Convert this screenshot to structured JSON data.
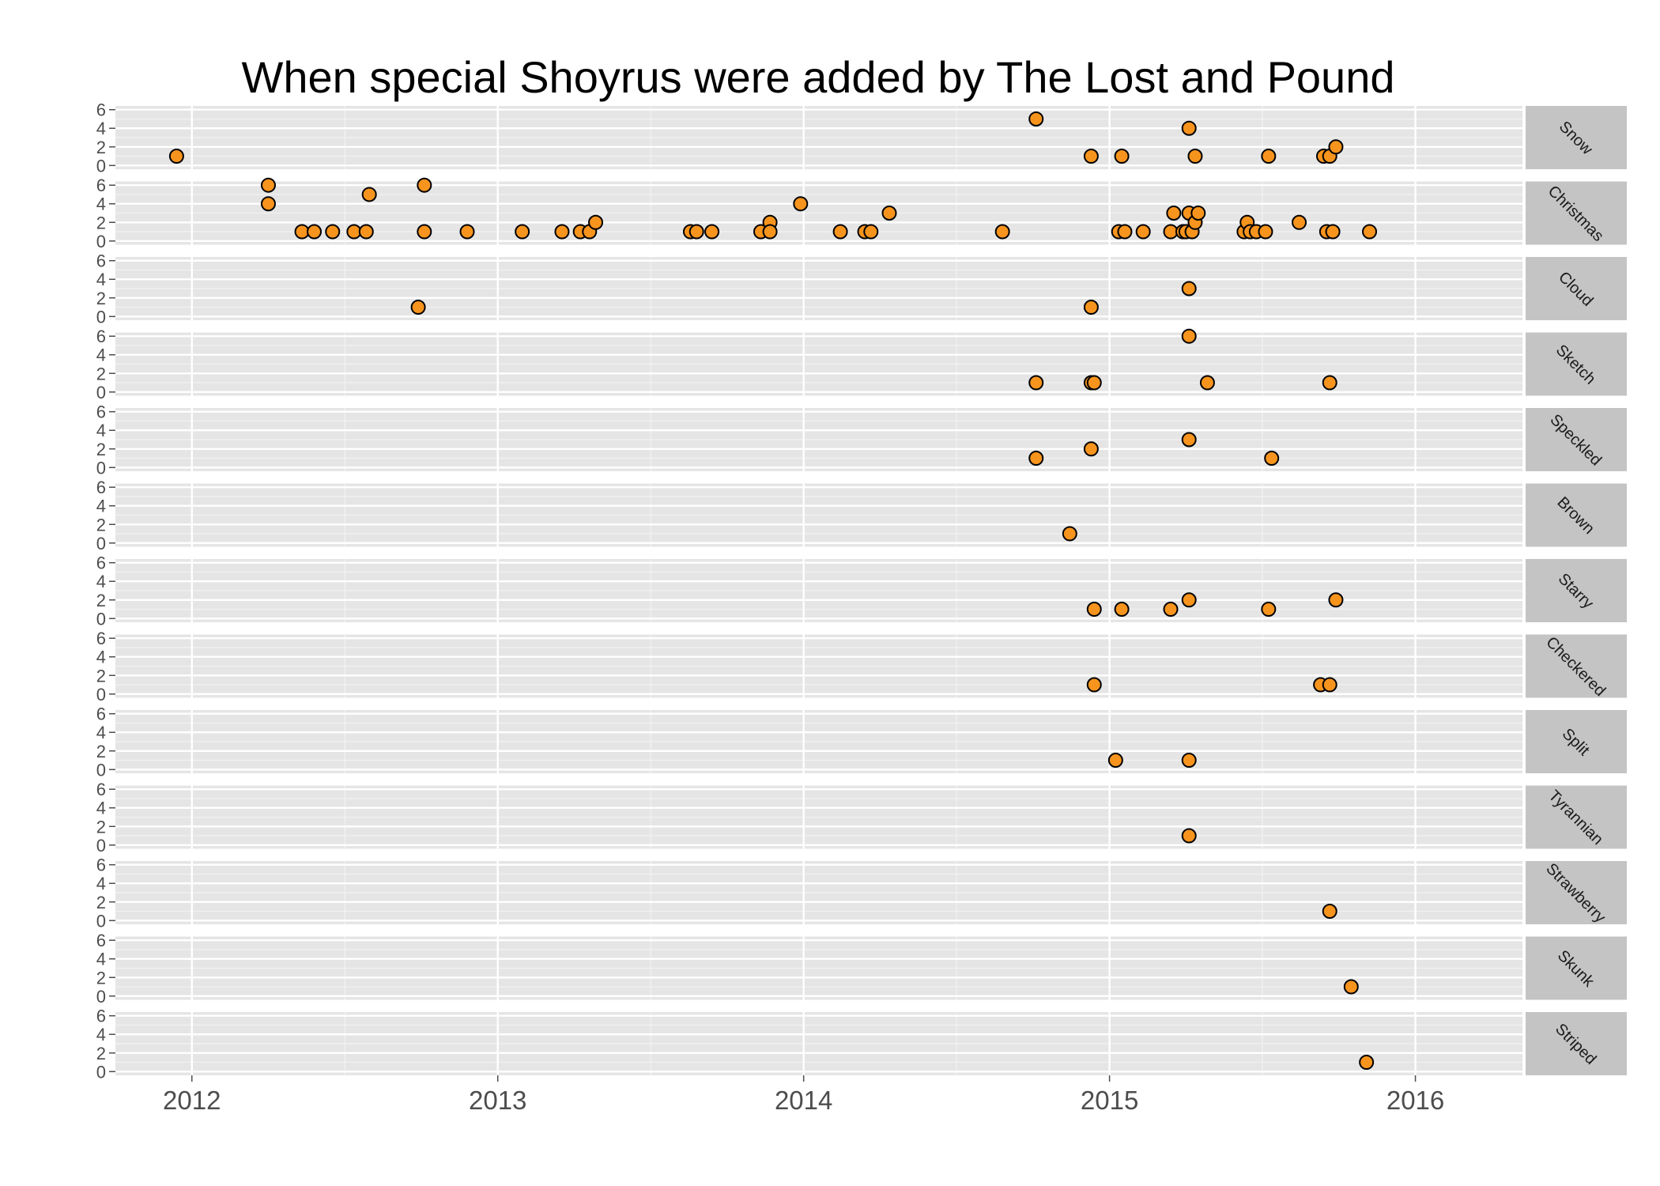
{
  "chart_data": {
    "type": "scatter",
    "title": "When special Shoyrus were added by The Lost and Pound",
    "xlabel": "",
    "ylabel": "",
    "xlim": [
      2011.75,
      2016.35
    ],
    "ylim": [
      -0.4,
      6.4
    ],
    "x_ticks": [
      2012,
      2013,
      2014,
      2015,
      2016
    ],
    "x_tick_labels": [
      "2012",
      "2013",
      "2014",
      "2015",
      "2016"
    ],
    "y_ticks": [
      0,
      2,
      4,
      6
    ],
    "y_tick_labels": [
      "0",
      "2",
      "4",
      "6"
    ],
    "grid": true,
    "facet": "rows",
    "point_fill": "#f7941d",
    "point_stroke": "#000000",
    "panel_background": "#e5e5e5",
    "strip_background": "#c4c4c4",
    "panels": [
      {
        "label": "Snow",
        "points": [
          [
            2011.95,
            1
          ],
          [
            2014.76,
            5
          ],
          [
            2014.94,
            1
          ],
          [
            2015.04,
            1
          ],
          [
            2015.26,
            4
          ],
          [
            2015.28,
            1
          ],
          [
            2015.52,
            1
          ],
          [
            2015.7,
            1
          ],
          [
            2015.72,
            1
          ],
          [
            2015.74,
            2
          ]
        ]
      },
      {
        "label": "Christmas",
        "points": [
          [
            2012.25,
            6
          ],
          [
            2012.25,
            4
          ],
          [
            2012.36,
            1
          ],
          [
            2012.4,
            1
          ],
          [
            2012.46,
            1
          ],
          [
            2012.53,
            1
          ],
          [
            2012.57,
            1
          ],
          [
            2012.58,
            5
          ],
          [
            2012.76,
            6
          ],
          [
            2012.76,
            1
          ],
          [
            2012.9,
            1
          ],
          [
            2013.08,
            1
          ],
          [
            2013.21,
            1
          ],
          [
            2013.27,
            1
          ],
          [
            2013.3,
            1
          ],
          [
            2013.32,
            2
          ],
          [
            2013.63,
            1
          ],
          [
            2013.65,
            1
          ],
          [
            2013.7,
            1
          ],
          [
            2013.86,
            1
          ],
          [
            2013.89,
            2
          ],
          [
            2013.89,
            1
          ],
          [
            2013.99,
            4
          ],
          [
            2014.12,
            1
          ],
          [
            2014.2,
            1
          ],
          [
            2014.22,
            1
          ],
          [
            2014.28,
            3
          ],
          [
            2014.65,
            1
          ],
          [
            2015.03,
            1
          ],
          [
            2015.05,
            1
          ],
          [
            2015.11,
            1
          ],
          [
            2015.2,
            1
          ],
          [
            2015.21,
            3
          ],
          [
            2015.24,
            1
          ],
          [
            2015.25,
            1
          ],
          [
            2015.26,
            3
          ],
          [
            2015.27,
            1
          ],
          [
            2015.28,
            2
          ],
          [
            2015.29,
            3
          ],
          [
            2015.44,
            1
          ],
          [
            2015.45,
            2
          ],
          [
            2015.46,
            1
          ],
          [
            2015.48,
            1
          ],
          [
            2015.51,
            1
          ],
          [
            2015.62,
            2
          ],
          [
            2015.71,
            1
          ],
          [
            2015.73,
            1
          ],
          [
            2015.85,
            1
          ]
        ]
      },
      {
        "label": "Cloud",
        "points": [
          [
            2012.74,
            1
          ],
          [
            2014.94,
            1
          ],
          [
            2015.26,
            3
          ]
        ]
      },
      {
        "label": "Sketch",
        "points": [
          [
            2014.76,
            1
          ],
          [
            2014.94,
            1
          ],
          [
            2014.95,
            1
          ],
          [
            2015.26,
            6
          ],
          [
            2015.32,
            1
          ],
          [
            2015.72,
            1
          ]
        ]
      },
      {
        "label": "Speckled",
        "points": [
          [
            2014.76,
            1
          ],
          [
            2014.94,
            2
          ],
          [
            2015.26,
            3
          ],
          [
            2015.53,
            1
          ]
        ]
      },
      {
        "label": "Brown",
        "points": [
          [
            2014.87,
            1
          ]
        ]
      },
      {
        "label": "Starry",
        "points": [
          [
            2014.95,
            1
          ],
          [
            2015.04,
            1
          ],
          [
            2015.2,
            1
          ],
          [
            2015.26,
            2
          ],
          [
            2015.52,
            1
          ],
          [
            2015.74,
            2
          ]
        ]
      },
      {
        "label": "Checkered",
        "points": [
          [
            2014.95,
            1
          ],
          [
            2015.69,
            1
          ],
          [
            2015.72,
            1
          ]
        ]
      },
      {
        "label": "Split",
        "points": [
          [
            2015.02,
            1
          ],
          [
            2015.26,
            1
          ]
        ]
      },
      {
        "label": "Tyrannian",
        "points": [
          [
            2015.26,
            1
          ]
        ]
      },
      {
        "label": "Strawberry",
        "points": [
          [
            2015.72,
            1
          ]
        ]
      },
      {
        "label": "Skunk",
        "points": [
          [
            2015.79,
            1
          ]
        ]
      },
      {
        "label": "Striped",
        "points": [
          [
            2015.84,
            1
          ]
        ]
      }
    ]
  }
}
